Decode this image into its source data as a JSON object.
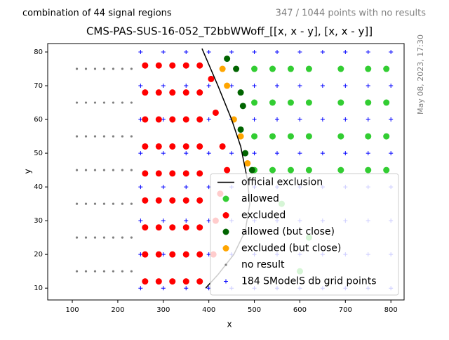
{
  "chart_data": {
    "type": "scatter",
    "title": "CMS-PAS-SUS-16-052_T2bbWWoff_[[x, x - y], [x, x - y]]",
    "subtitle_left": "combination of 44 signal regions",
    "subtitle_right": "347 / 1044 points with no results",
    "timestamp": "May 08, 2023, 17:30",
    "x_label": "x",
    "y_label": "y",
    "xlim": [
      46,
      829
    ],
    "ylim": [
      6.5,
      82.5
    ],
    "xticks": [
      100,
      200,
      300,
      400,
      500,
      600,
      700,
      800
    ],
    "yticks": [
      10,
      20,
      30,
      40,
      50,
      60,
      70,
      80
    ],
    "legend": "lower right",
    "series": [
      {
        "name": "no result",
        "color": "#808080",
        "marker": ".",
        "x": [
          110,
          130,
          150,
          170,
          190,
          210,
          230,
          110,
          130,
          150,
          170,
          190,
          210,
          230,
          110,
          130,
          150,
          170,
          190,
          210,
          230,
          110,
          130,
          150,
          170,
          190,
          210,
          230,
          110,
          130,
          150,
          170,
          190,
          210,
          230,
          110,
          130,
          150,
          170,
          190,
          210,
          230,
          110,
          130,
          150,
          170,
          190,
          210,
          230
        ],
        "y": [
          15,
          15,
          15,
          15,
          15,
          15,
          15,
          25,
          25,
          25,
          25,
          25,
          25,
          25,
          35,
          35,
          35,
          35,
          35,
          35,
          35,
          45,
          45,
          45,
          45,
          45,
          45,
          45,
          55,
          55,
          55,
          55,
          55,
          55,
          55,
          65,
          65,
          65,
          65,
          65,
          65,
          65,
          75,
          75,
          75,
          75,
          75,
          75,
          75
        ]
      },
      {
        "name": "184 SModelS db grid points",
        "color": "#0000ff",
        "marker": "+",
        "x": [
          250,
          300,
          350,
          400,
          450,
          500,
          550,
          600,
          650,
          700,
          750,
          800,
          250,
          300,
          350,
          400,
          450,
          500,
          550,
          600,
          650,
          700,
          750,
          800,
          250,
          300,
          350,
          400,
          450,
          500,
          550,
          600,
          650,
          700,
          750,
          800,
          250,
          300,
          350,
          400,
          450,
          500,
          550,
          600,
          650,
          700,
          750,
          800,
          250,
          300,
          350,
          400,
          450,
          500,
          550,
          600,
          650,
          700,
          750,
          800,
          250,
          300,
          350,
          400,
          450,
          500,
          550,
          600,
          650,
          700,
          750,
          800,
          250,
          300,
          350,
          400,
          450,
          500,
          550,
          600,
          650,
          700,
          750,
          800,
          250,
          300,
          350,
          400,
          450,
          500,
          550,
          600,
          650,
          700,
          750,
          800
        ],
        "y": [
          10,
          10,
          10,
          10,
          10,
          10,
          10,
          10,
          10,
          10,
          10,
          10,
          20,
          20,
          20,
          20,
          20,
          20,
          20,
          20,
          20,
          20,
          20,
          20,
          30,
          30,
          30,
          30,
          30,
          30,
          30,
          30,
          30,
          30,
          30,
          30,
          40,
          40,
          40,
          40,
          40,
          40,
          40,
          40,
          40,
          40,
          40,
          40,
          50,
          50,
          50,
          50,
          50,
          50,
          50,
          50,
          50,
          50,
          50,
          50,
          60,
          60,
          60,
          60,
          60,
          60,
          60,
          60,
          60,
          60,
          60,
          60,
          70,
          70,
          70,
          70,
          70,
          70,
          70,
          70,
          70,
          70,
          70,
          70,
          80,
          80,
          80,
          80,
          80,
          80,
          80,
          80,
          80,
          80,
          80,
          80
        ]
      },
      {
        "name": "excluded",
        "color": "#ff0000",
        "marker": "o",
        "x": [
          260,
          290,
          320,
          350,
          380,
          260,
          290,
          320,
          350,
          380,
          260,
          290,
          320,
          350,
          380,
          260,
          290,
          320,
          350,
          380,
          260,
          290,
          320,
          350,
          380,
          260,
          290,
          320,
          350,
          380,
          260,
          290,
          320,
          350,
          380,
          260,
          290,
          320,
          350,
          380,
          260,
          290,
          320,
          350,
          380,
          410,
          415,
          425,
          440,
          430,
          415,
          405
        ],
        "y": [
          12,
          12,
          12,
          12,
          12,
          20,
          20,
          20,
          20,
          20,
          28,
          28,
          28,
          28,
          28,
          36,
          36,
          36,
          36,
          36,
          44,
          44,
          44,
          44,
          44,
          52,
          52,
          52,
          52,
          52,
          60,
          60,
          60,
          60,
          60,
          68,
          68,
          68,
          68,
          68,
          76,
          76,
          76,
          76,
          76,
          20,
          30,
          38,
          45,
          52,
          62,
          72
        ]
      },
      {
        "name": "allowed",
        "color": "#32cd32",
        "marker": "o",
        "x": [
          500,
          540,
          580,
          620,
          690,
          750,
          790,
          500,
          540,
          580,
          620,
          690,
          750,
          790,
          500,
          540,
          580,
          620,
          690,
          750,
          790,
          500,
          540,
          580,
          620,
          690,
          750,
          790,
          560,
          620,
          600
        ],
        "y": [
          45,
          45,
          45,
          45,
          45,
          45,
          45,
          55,
          55,
          55,
          55,
          55,
          55,
          55,
          65,
          65,
          65,
          65,
          65,
          65,
          65,
          75,
          75,
          75,
          75,
          75,
          75,
          75,
          35,
          25,
          15
        ]
      },
      {
        "name": "allowed (but close)",
        "color": "#006400",
        "marker": "o",
        "x": [
          440,
          460,
          470,
          475,
          470,
          480,
          495
        ],
        "y": [
          78,
          75,
          68,
          64,
          57,
          50,
          45
        ]
      },
      {
        "name": "excluded (but close)",
        "color": "#ffa500",
        "marker": "o",
        "x": [
          430,
          440,
          455,
          470,
          485
        ],
        "y": [
          75,
          70,
          60,
          55,
          47
        ]
      },
      {
        "name": "official exclusion",
        "color": "#000000",
        "marker": "line",
        "x": [
          385,
          420,
          450,
          470,
          485,
          490,
          480,
          455,
          420,
          393
        ],
        "y": [
          81,
          70,
          60,
          52,
          42,
          35,
          27,
          20,
          14,
          10
        ]
      }
    ],
    "legend_order": [
      6,
      3,
      2,
      4,
      5,
      0,
      1
    ]
  }
}
